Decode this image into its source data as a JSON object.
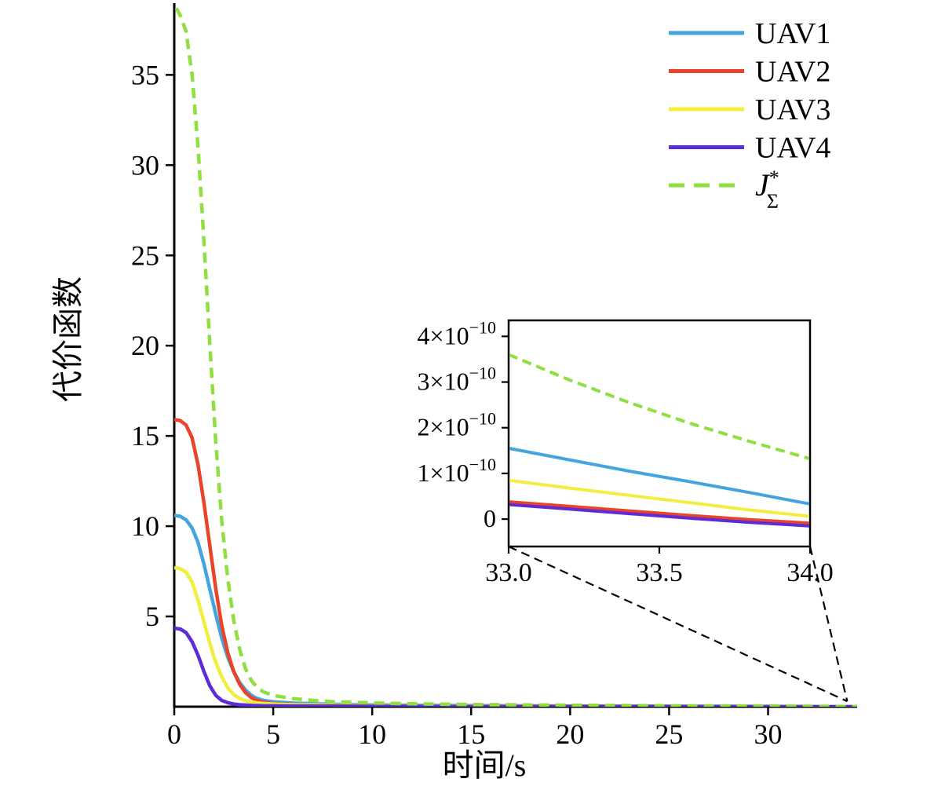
{
  "figure": {
    "background": "#ffffff",
    "axis_color": "#000000",
    "connector_color": "#000000"
  },
  "chart_data": {
    "type": "line",
    "title": "",
    "xlabel": "时间/s",
    "ylabel": "代价函数",
    "xlim": [
      0,
      34.5
    ],
    "ylim": [
      0,
      38.8
    ],
    "xticks": [
      0,
      5,
      10,
      15,
      20,
      25,
      30
    ],
    "yticks": [
      5,
      10,
      15,
      20,
      25,
      30,
      35
    ],
    "grid": false,
    "legend_position": "top-right",
    "series": [
      {
        "name": "UAV1",
        "color": "#44a5de",
        "dashed": false,
        "x": [
          0,
          0.3,
          0.6,
          0.9,
          1.2,
          1.5,
          1.8,
          2.1,
          2.4,
          2.7,
          3.0,
          3.3,
          3.6,
          3.9,
          4.2,
          4.5,
          5,
          6,
          7,
          8,
          10,
          12,
          15,
          20,
          25,
          30,
          34.5
        ],
        "y": [
          10.6,
          10.55,
          10.35,
          9.9,
          9.1,
          7.9,
          6.5,
          5.1,
          3.8,
          2.75,
          1.95,
          1.35,
          0.92,
          0.62,
          0.45,
          0.35,
          0.27,
          0.2,
          0.16,
          0.13,
          0.1,
          0.08,
          0.06,
          0.04,
          0.03,
          0.02,
          0.01
        ]
      },
      {
        "name": "UAV2",
        "color": "#ea4329",
        "dashed": false,
        "x": [
          0,
          0.3,
          0.6,
          0.9,
          1.2,
          1.5,
          1.8,
          2.1,
          2.4,
          2.7,
          3.0,
          3.3,
          3.6,
          3.9,
          4.2,
          4.5,
          5,
          6,
          7,
          8,
          10,
          12,
          15,
          20,
          25,
          30,
          34.5
        ],
        "y": [
          15.9,
          15.85,
          15.6,
          14.9,
          13.4,
          11.3,
          8.9,
          6.5,
          4.5,
          3.0,
          1.95,
          1.25,
          0.78,
          0.5,
          0.34,
          0.25,
          0.18,
          0.12,
          0.09,
          0.07,
          0.05,
          0.04,
          0.03,
          0.02,
          0.01,
          0.01,
          0.0
        ]
      },
      {
        "name": "UAV3",
        "color": "#f2ee3f",
        "dashed": false,
        "x": [
          0,
          0.3,
          0.6,
          0.9,
          1.2,
          1.5,
          1.8,
          2.1,
          2.4,
          2.7,
          3.0,
          3.3,
          3.6,
          3.9,
          4.2,
          4.5,
          5,
          6,
          7,
          8,
          10,
          12,
          15,
          20,
          25,
          30,
          34.5
        ],
        "y": [
          7.7,
          7.65,
          7.45,
          6.9,
          5.9,
          4.7,
          3.5,
          2.45,
          1.65,
          1.05,
          0.68,
          0.46,
          0.33,
          0.26,
          0.21,
          0.18,
          0.15,
          0.11,
          0.09,
          0.07,
          0.05,
          0.04,
          0.03,
          0.02,
          0.02,
          0.01,
          0.01
        ]
      },
      {
        "name": "UAV4",
        "color": "#5e2cd6",
        "dashed": false,
        "x": [
          0,
          0.3,
          0.6,
          0.9,
          1.2,
          1.5,
          1.8,
          2.1,
          2.4,
          2.7,
          3.0,
          3.3,
          3.6,
          3.9,
          4.2,
          4.5,
          5,
          6,
          7,
          8,
          10,
          12,
          15,
          20,
          25,
          30,
          34.5
        ],
        "y": [
          4.35,
          4.3,
          4.1,
          3.6,
          2.85,
          1.95,
          1.15,
          0.62,
          0.35,
          0.22,
          0.15,
          0.11,
          0.09,
          0.07,
          0.06,
          0.05,
          0.05,
          0.04,
          0.03,
          0.03,
          0.02,
          0.02,
          0.01,
          0.01,
          0.01,
          0.0,
          0.0
        ]
      },
      {
        "name": "J_sigma_star",
        "legend_base": "J",
        "legend_sup": "*",
        "legend_sub": "Σ",
        "color": "#8fdf3f",
        "dashed": true,
        "x": [
          0.1,
          0.3,
          0.6,
          0.9,
          1.2,
          1.5,
          1.8,
          2.1,
          2.4,
          2.7,
          3.0,
          3.3,
          3.6,
          3.9,
          4.2,
          4.5,
          5,
          6,
          7,
          8,
          10,
          12,
          15,
          20,
          25,
          30,
          34.5
        ],
        "y": [
          38.7,
          38.3,
          37.4,
          35.0,
          31.0,
          25.8,
          20.0,
          14.6,
          10.3,
          7.1,
          4.8,
          3.2,
          2.1,
          1.45,
          1.05,
          0.82,
          0.62,
          0.45,
          0.35,
          0.28,
          0.21,
          0.16,
          0.12,
          0.08,
          0.05,
          0.03,
          0.01
        ]
      }
    ],
    "inset": {
      "xlim": [
        33,
        34
      ],
      "ylim": [
        -0.6,
        4.35
      ],
      "xticks": [
        33,
        33.5,
        34
      ],
      "xtick_labels": [
        "33.0",
        "33.5",
        "34.0"
      ],
      "yticks": [
        0,
        1,
        2,
        3,
        4
      ],
      "ytick_labels": [
        "0",
        "1×10^−10",
        "2×10^−10",
        "3×10^−10",
        "4×10^−10"
      ],
      "series": [
        {
          "name": "J_sigma_star",
          "color": "#8fdf3f",
          "dashed": true,
          "x": [
            33,
            33.2,
            33.4,
            33.6,
            33.8,
            34
          ],
          "y": [
            3.6,
            3.05,
            2.55,
            2.1,
            1.7,
            1.32
          ]
        },
        {
          "name": "UAV1",
          "color": "#44a5de",
          "dashed": false,
          "x": [
            33,
            33.2,
            33.4,
            33.6,
            33.8,
            34
          ],
          "y": [
            1.55,
            1.3,
            1.05,
            0.82,
            0.58,
            0.33
          ]
        },
        {
          "name": "UAV3",
          "color": "#f2ee3f",
          "dashed": false,
          "x": [
            33,
            33.2,
            33.4,
            33.6,
            33.8,
            34
          ],
          "y": [
            0.85,
            0.68,
            0.52,
            0.36,
            0.2,
            0.06
          ]
        },
        {
          "name": "UAV2",
          "color": "#ea4329",
          "dashed": false,
          "x": [
            33,
            33.2,
            33.4,
            33.6,
            33.8,
            34
          ],
          "y": [
            0.38,
            0.28,
            0.18,
            0.08,
            -0.01,
            -0.09
          ]
        },
        {
          "name": "UAV4",
          "color": "#5e2cd6",
          "dashed": false,
          "x": [
            33,
            33.2,
            33.4,
            33.6,
            33.8,
            34
          ],
          "y": [
            0.32,
            0.22,
            0.12,
            0.02,
            -0.07,
            -0.15
          ]
        }
      ]
    }
  }
}
